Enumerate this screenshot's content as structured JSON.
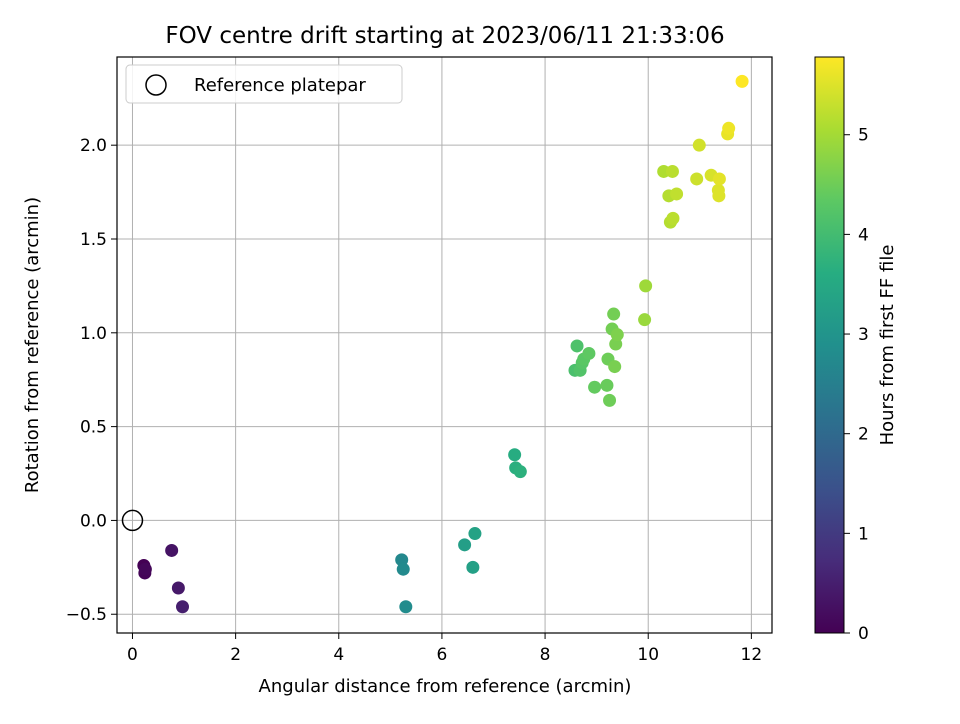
{
  "chart_data": {
    "type": "scatter",
    "title": "FOV centre drift starting at 2023/06/11 21:33:06",
    "xlabel": "Angular distance from reference (arcmin)",
    "ylabel": "Rotation from reference (arcmin)",
    "xlim": [
      -0.3,
      12.4
    ],
    "ylim": [
      -0.6,
      2.47
    ],
    "xticks": [
      0,
      2,
      4,
      6,
      8,
      10,
      12
    ],
    "yticks": [
      -0.5,
      0.0,
      0.5,
      1.0,
      1.5,
      2.0
    ],
    "xtick_labels": [
      "0",
      "2",
      "4",
      "6",
      "8",
      "10",
      "12"
    ],
    "ytick_labels": [
      "−0.5",
      "0.0",
      "0.5",
      "1.0",
      "1.5",
      "2.0"
    ],
    "grid": true,
    "legend": {
      "placement": "top-left",
      "entries": [
        "Reference platepar"
      ]
    },
    "reference_point": {
      "name": "Reference platepar",
      "x": 0.0,
      "y": 0.0
    },
    "colorbar": {
      "label": "Hours from first FF file",
      "colormap": "viridis",
      "range": [
        0,
        5.78
      ],
      "ticks": [
        0,
        1,
        2,
        3,
        4,
        5
      ],
      "tick_labels": [
        "0",
        "1",
        "2",
        "3",
        "4",
        "5"
      ]
    },
    "points": [
      {
        "x": 0.22,
        "y": -0.24,
        "hours": 0.0
      },
      {
        "x": 0.24,
        "y": -0.28,
        "hours": 0.05
      },
      {
        "x": 0.25,
        "y": -0.26,
        "hours": 0.1
      },
      {
        "x": 0.76,
        "y": -0.16,
        "hours": 0.3
      },
      {
        "x": 0.89,
        "y": -0.36,
        "hours": 0.4
      },
      {
        "x": 0.97,
        "y": -0.46,
        "hours": 0.5
      },
      {
        "x": 5.22,
        "y": -0.21,
        "hours": 2.7
      },
      {
        "x": 5.25,
        "y": -0.26,
        "hours": 2.75
      },
      {
        "x": 5.3,
        "y": -0.46,
        "hours": 2.8
      },
      {
        "x": 6.44,
        "y": -0.13,
        "hours": 3.25
      },
      {
        "x": 6.6,
        "y": -0.25,
        "hours": 3.3
      },
      {
        "x": 6.64,
        "y": -0.07,
        "hours": 3.35
      },
      {
        "x": 7.41,
        "y": 0.35,
        "hours": 3.6
      },
      {
        "x": 7.43,
        "y": 0.28,
        "hours": 3.65
      },
      {
        "x": 7.52,
        "y": 0.26,
        "hours": 3.7
      },
      {
        "x": 8.58,
        "y": 0.8,
        "hours": 4.1
      },
      {
        "x": 8.62,
        "y": 0.93,
        "hours": 4.15
      },
      {
        "x": 8.68,
        "y": 0.8,
        "hours": 4.2
      },
      {
        "x": 8.72,
        "y": 0.84,
        "hours": 4.25
      },
      {
        "x": 8.75,
        "y": 0.86,
        "hours": 4.3
      },
      {
        "x": 8.85,
        "y": 0.89,
        "hours": 4.35
      },
      {
        "x": 8.96,
        "y": 0.71,
        "hours": 4.4
      },
      {
        "x": 9.2,
        "y": 0.72,
        "hours": 4.45
      },
      {
        "x": 9.22,
        "y": 0.86,
        "hours": 4.5
      },
      {
        "x": 9.25,
        "y": 0.64,
        "hours": 4.5
      },
      {
        "x": 9.3,
        "y": 1.02,
        "hours": 4.55
      },
      {
        "x": 9.33,
        "y": 1.1,
        "hours": 4.55
      },
      {
        "x": 9.35,
        "y": 0.82,
        "hours": 4.6
      },
      {
        "x": 9.37,
        "y": 0.94,
        "hours": 4.6
      },
      {
        "x": 9.4,
        "y": 0.99,
        "hours": 4.65
      },
      {
        "x": 9.93,
        "y": 1.07,
        "hours": 4.9
      },
      {
        "x": 9.95,
        "y": 1.25,
        "hours": 4.95
      },
      {
        "x": 10.3,
        "y": 1.86,
        "hours": 5.1
      },
      {
        "x": 10.4,
        "y": 1.73,
        "hours": 5.15
      },
      {
        "x": 10.43,
        "y": 1.59,
        "hours": 5.15
      },
      {
        "x": 10.47,
        "y": 1.86,
        "hours": 5.2
      },
      {
        "x": 10.48,
        "y": 1.61,
        "hours": 5.2
      },
      {
        "x": 10.55,
        "y": 1.74,
        "hours": 5.25
      },
      {
        "x": 10.94,
        "y": 1.82,
        "hours": 5.35
      },
      {
        "x": 10.99,
        "y": 2.0,
        "hours": 5.4
      },
      {
        "x": 11.22,
        "y": 1.84,
        "hours": 5.45
      },
      {
        "x": 11.36,
        "y": 1.76,
        "hours": 5.5
      },
      {
        "x": 11.37,
        "y": 1.73,
        "hours": 5.5
      },
      {
        "x": 11.38,
        "y": 1.82,
        "hours": 5.55
      },
      {
        "x": 11.54,
        "y": 2.06,
        "hours": 5.6
      },
      {
        "x": 11.56,
        "y": 2.09,
        "hours": 5.65
      },
      {
        "x": 11.82,
        "y": 2.34,
        "hours": 5.78
      }
    ]
  }
}
